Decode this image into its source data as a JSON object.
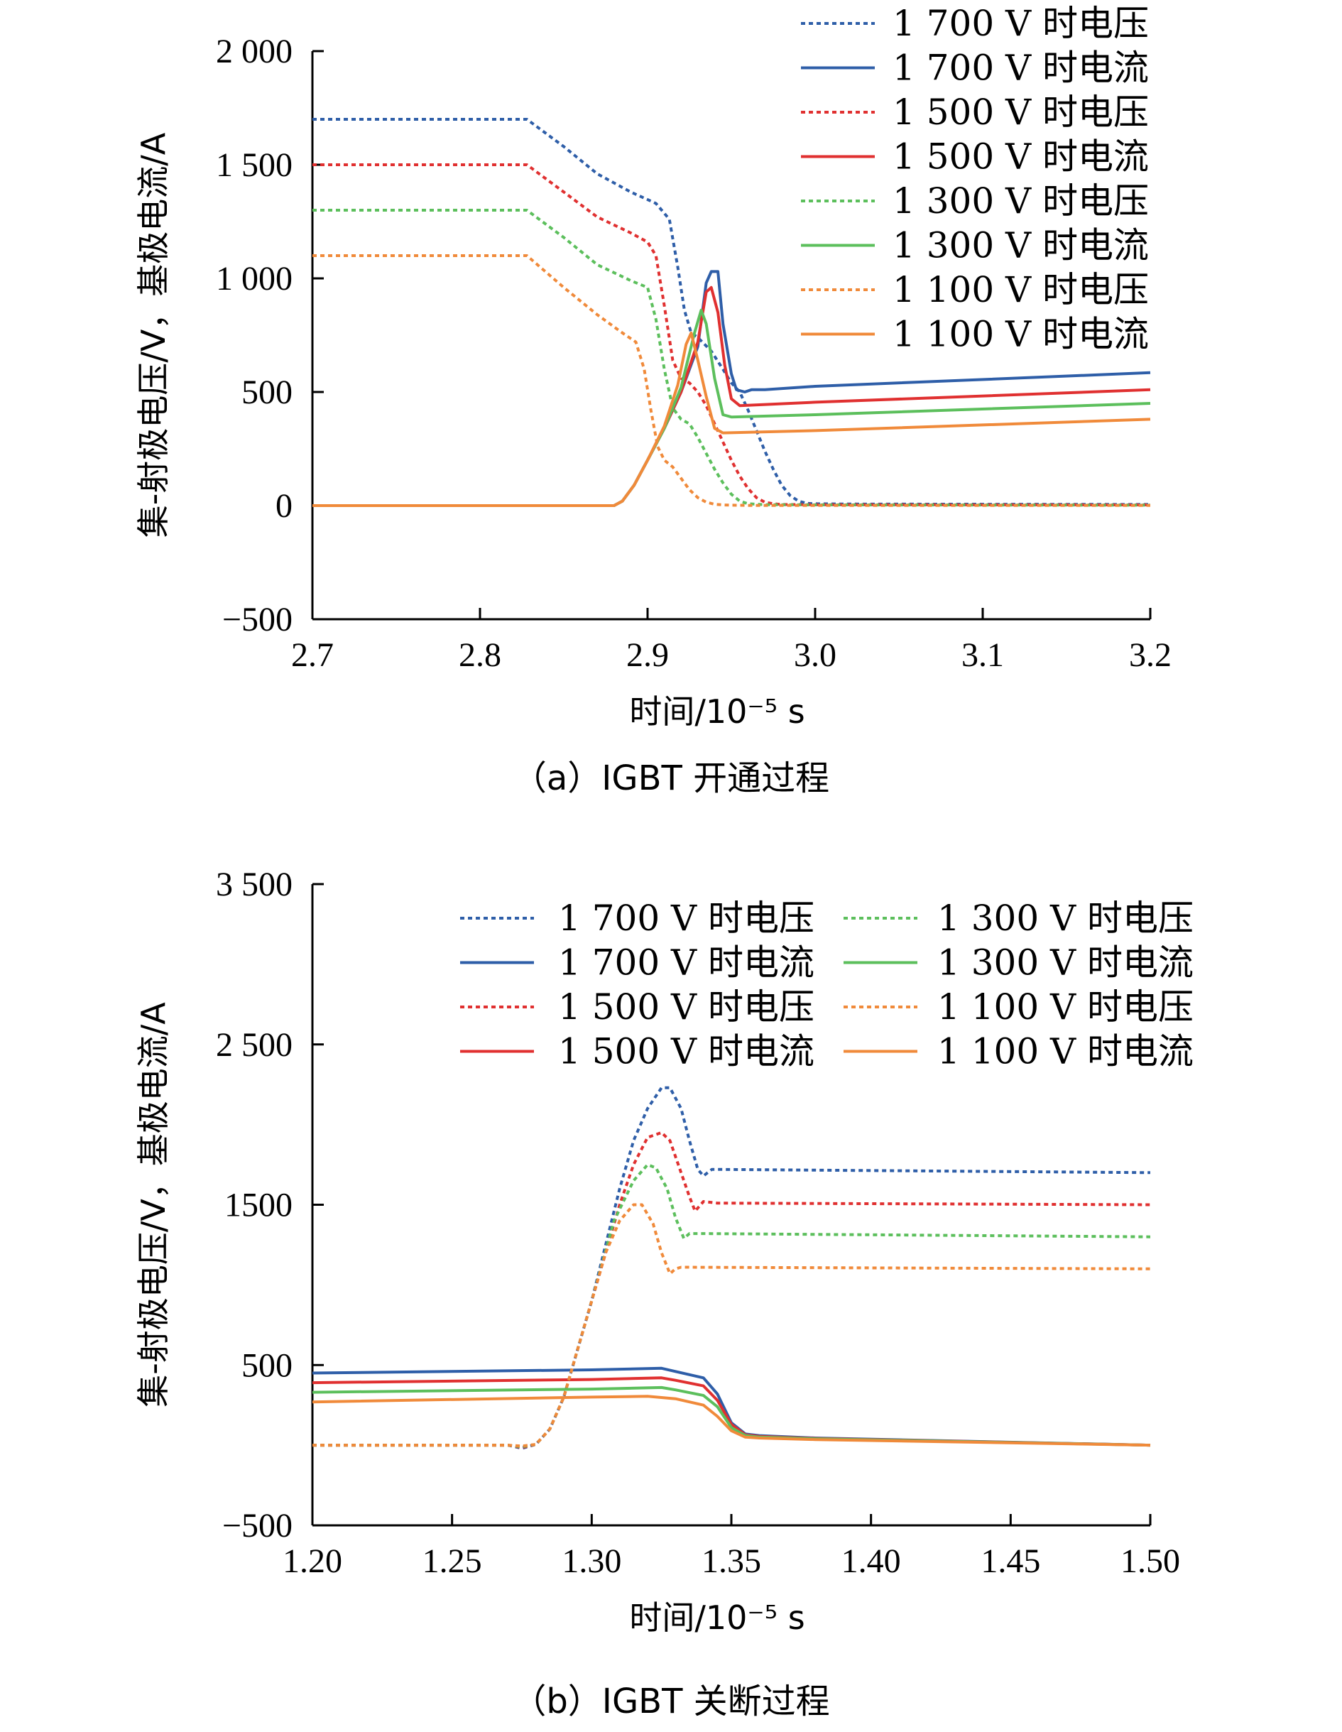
{
  "chart_data": [
    {
      "type": "line",
      "caption": "（a）IGBT 开通过程",
      "xlabel": "时间/10⁻⁵ s",
      "ylabel": "集-射极电压/V，基极电流/A",
      "xlim": [
        2.7,
        3.2
      ],
      "ylim": [
        -500,
        2000
      ],
      "xticks": [
        "2.7",
        "2.8",
        "2.9",
        "3.0",
        "3.1",
        "3.2"
      ],
      "xtick_values": [
        2.7,
        2.8,
        2.9,
        3.0,
        3.1,
        3.2
      ],
      "yticks": [
        "−500",
        "0",
        "500",
        "1 000",
        "1 500",
        "2 000"
      ],
      "ytick_values": [
        -500,
        0,
        500,
        1000,
        1500,
        2000
      ],
      "grid": false,
      "legend_position": "top-right",
      "legend_columns": 1,
      "series": [
        {
          "name": "1 700 V 时电压",
          "color": "#2e5ea8",
          "dash": true,
          "x": [
            2.7,
            2.828,
            2.85,
            2.87,
            2.89,
            2.905,
            2.913,
            2.918,
            2.922,
            2.926,
            2.93,
            2.938,
            2.945,
            2.95,
            2.955,
            2.96,
            2.965,
            2.97,
            2.975,
            2.98,
            2.985,
            2.99,
            2.995,
            3.0,
            3.02,
            3.2
          ],
          "y": [
            1700,
            1700,
            1580,
            1460,
            1380,
            1330,
            1260,
            1050,
            860,
            760,
            740,
            680,
            600,
            540,
            500,
            420,
            330,
            240,
            160,
            90,
            45,
            20,
            10,
            8,
            7,
            5
          ]
        },
        {
          "name": "1 700 V 时电流",
          "color": "#2e5ea8",
          "dash": false,
          "x": [
            2.7,
            2.88,
            2.885,
            2.892,
            2.9,
            2.91,
            2.92,
            2.93,
            2.935,
            2.938,
            2.942,
            2.945,
            2.95,
            2.953,
            2.958,
            2.962,
            2.97,
            3.0,
            3.2
          ],
          "y": [
            0,
            0,
            20,
            90,
            200,
            340,
            500,
            700,
            980,
            1030,
            1030,
            800,
            580,
            510,
            500,
            510,
            510,
            525,
            585
          ]
        },
        {
          "name": "1 500 V 时电压",
          "color": "#e03030",
          "dash": true,
          "x": [
            2.7,
            2.828,
            2.85,
            2.87,
            2.89,
            2.9,
            2.905,
            2.91,
            2.915,
            2.92,
            2.925,
            2.93,
            2.935,
            2.94,
            2.945,
            2.95,
            2.955,
            2.96,
            2.965,
            2.97,
            2.975,
            2.98,
            3.0,
            3.2
          ],
          "y": [
            1500,
            1500,
            1380,
            1270,
            1200,
            1160,
            1100,
            880,
            640,
            560,
            540,
            500,
            440,
            360,
            280,
            200,
            130,
            75,
            35,
            15,
            8,
            5,
            4,
            3
          ]
        },
        {
          "name": "1 500 V 时电流",
          "color": "#e03030",
          "dash": false,
          "x": [
            2.7,
            2.88,
            2.885,
            2.892,
            2.9,
            2.91,
            2.92,
            2.93,
            2.935,
            2.938,
            2.942,
            2.946,
            2.95,
            2.955,
            3.0,
            3.2
          ],
          "y": [
            0,
            0,
            20,
            90,
            200,
            340,
            500,
            720,
            940,
            960,
            850,
            620,
            470,
            440,
            455,
            510
          ]
        },
        {
          "name": "1 300 V 时电压",
          "color": "#5cbf5c",
          "dash": true,
          "x": [
            2.7,
            2.828,
            2.85,
            2.87,
            2.89,
            2.9,
            2.905,
            2.91,
            2.915,
            2.92,
            2.925,
            2.93,
            2.935,
            2.94,
            2.945,
            2.95,
            2.955,
            2.96,
            2.97,
            3.0,
            3.2
          ],
          "y": [
            1300,
            1300,
            1180,
            1060,
            990,
            960,
            820,
            600,
            430,
            380,
            360,
            300,
            230,
            160,
            100,
            50,
            20,
            8,
            4,
            3,
            2
          ]
        },
        {
          "name": "1 300 V 时电流",
          "color": "#5cbf5c",
          "dash": false,
          "x": [
            2.7,
            2.88,
            2.885,
            2.892,
            2.9,
            2.91,
            2.92,
            2.928,
            2.932,
            2.935,
            2.94,
            2.945,
            2.95,
            3.0,
            3.2
          ],
          "y": [
            0,
            0,
            20,
            90,
            200,
            340,
            520,
            760,
            860,
            800,
            560,
            400,
            390,
            400,
            450
          ]
        },
        {
          "name": "1 100 V 时电压",
          "color": "#f08a3a",
          "dash": true,
          "x": [
            2.7,
            2.828,
            2.85,
            2.87,
            2.885,
            2.893,
            2.898,
            2.902,
            2.906,
            2.91,
            2.915,
            2.92,
            2.925,
            2.93,
            2.935,
            2.94,
            2.945,
            2.95,
            2.96,
            3.2
          ],
          "y": [
            1100,
            1100,
            960,
            840,
            760,
            720,
            600,
            420,
            260,
            200,
            170,
            120,
            70,
            35,
            15,
            6,
            3,
            2,
            1,
            1
          ]
        },
        {
          "name": "1 100 V 时电流",
          "color": "#f08a3a",
          "dash": false,
          "x": [
            2.7,
            2.88,
            2.885,
            2.892,
            2.9,
            2.91,
            2.918,
            2.923,
            2.926,
            2.93,
            2.935,
            2.94,
            2.945,
            3.0,
            3.2
          ],
          "y": [
            0,
            0,
            20,
            90,
            200,
            350,
            530,
            710,
            760,
            640,
            480,
            340,
            320,
            330,
            380
          ]
        }
      ]
    },
    {
      "type": "line",
      "caption": "（b）IGBT 关断过程",
      "xlabel": "时间/10⁻⁵ s",
      "ylabel": "集-射极电压/V，基极电流/A",
      "xlim": [
        1.2,
        1.5
      ],
      "ylim": [
        -500,
        3500
      ],
      "xticks": [
        "1.20",
        "1.25",
        "1.30",
        "1.35",
        "1.40",
        "1.45",
        "1.50"
      ],
      "xtick_values": [
        1.2,
        1.25,
        1.3,
        1.35,
        1.4,
        1.45,
        1.5
      ],
      "yticks": [
        "−500",
        "500",
        "1500",
        "2 500",
        "3 500"
      ],
      "ytick_values": [
        -500,
        500,
        1500,
        2500,
        3500
      ],
      "grid": false,
      "legend_position": "top-right",
      "legend_columns": 2,
      "series": [
        {
          "name": "1 700 V 时电压",
          "color": "#2e5ea8",
          "dash": true,
          "x": [
            1.2,
            1.27,
            1.275,
            1.28,
            1.285,
            1.29,
            1.3,
            1.31,
            1.315,
            1.32,
            1.325,
            1.328,
            1.332,
            1.335,
            1.338,
            1.34,
            1.343,
            1.347,
            1.5
          ],
          "y": [
            0,
            0,
            -20,
            5,
            100,
            300,
            900,
            1600,
            1900,
            2100,
            2230,
            2230,
            2100,
            1900,
            1720,
            1680,
            1720,
            1720,
            1700
          ]
        },
        {
          "name": "1 700 V 时电流",
          "color": "#2e5ea8",
          "dash": false,
          "x": [
            1.2,
            1.3,
            1.325,
            1.33,
            1.34,
            1.345,
            1.35,
            1.355,
            1.36,
            1.38,
            1.5
          ],
          "y": [
            450,
            470,
            480,
            460,
            420,
            320,
            140,
            70,
            60,
            45,
            0
          ]
        },
        {
          "name": "1 500 V 时电压",
          "color": "#e03030",
          "dash": true,
          "x": [
            1.2,
            1.27,
            1.275,
            1.28,
            1.285,
            1.29,
            1.3,
            1.31,
            1.315,
            1.32,
            1.325,
            1.328,
            1.332,
            1.335,
            1.337,
            1.34,
            1.345,
            1.5
          ],
          "y": [
            0,
            0,
            -15,
            5,
            100,
            300,
            900,
            1500,
            1750,
            1920,
            1950,
            1900,
            1700,
            1550,
            1460,
            1520,
            1510,
            1500
          ]
        },
        {
          "name": "1 500 V 时电流",
          "color": "#e03030",
          "dash": false,
          "x": [
            1.2,
            1.3,
            1.325,
            1.33,
            1.34,
            1.345,
            1.35,
            1.355,
            1.36,
            1.38,
            1.5
          ],
          "y": [
            390,
            410,
            420,
            405,
            370,
            280,
            130,
            65,
            55,
            42,
            0
          ]
        },
        {
          "name": "1 300 V 时电压",
          "color": "#5cbf5c",
          "dash": true,
          "x": [
            1.2,
            1.27,
            1.275,
            1.28,
            1.285,
            1.29,
            1.3,
            1.308,
            1.315,
            1.32,
            1.323,
            1.327,
            1.33,
            1.333,
            1.335,
            1.34,
            1.5
          ],
          "y": [
            0,
            0,
            -10,
            5,
            100,
            300,
            900,
            1400,
            1650,
            1750,
            1730,
            1600,
            1420,
            1290,
            1320,
            1320,
            1300
          ]
        },
        {
          "name": "1 300 V 时电流",
          "color": "#5cbf5c",
          "dash": false,
          "x": [
            1.2,
            1.3,
            1.325,
            1.33,
            1.34,
            1.345,
            1.35,
            1.355,
            1.36,
            1.38,
            1.5
          ],
          "y": [
            330,
            350,
            360,
            345,
            310,
            240,
            110,
            60,
            50,
            40,
            0
          ]
        },
        {
          "name": "1 100 V 时电压",
          "color": "#f08a3a",
          "dash": true,
          "x": [
            1.2,
            1.27,
            1.275,
            1.28,
            1.285,
            1.29,
            1.3,
            1.305,
            1.31,
            1.315,
            1.318,
            1.322,
            1.325,
            1.328,
            1.33,
            1.332,
            1.5
          ],
          "y": [
            0,
            0,
            -5,
            5,
            100,
            300,
            900,
            1200,
            1400,
            1500,
            1500,
            1380,
            1200,
            1070,
            1100,
            1110,
            1100
          ]
        },
        {
          "name": "1 100 V 时电流",
          "color": "#f08a3a",
          "dash": false,
          "x": [
            1.2,
            1.3,
            1.32,
            1.33,
            1.34,
            1.345,
            1.35,
            1.355,
            1.36,
            1.38,
            1.5
          ],
          "y": [
            270,
            300,
            305,
            290,
            250,
            180,
            90,
            50,
            45,
            35,
            0
          ]
        }
      ]
    }
  ]
}
